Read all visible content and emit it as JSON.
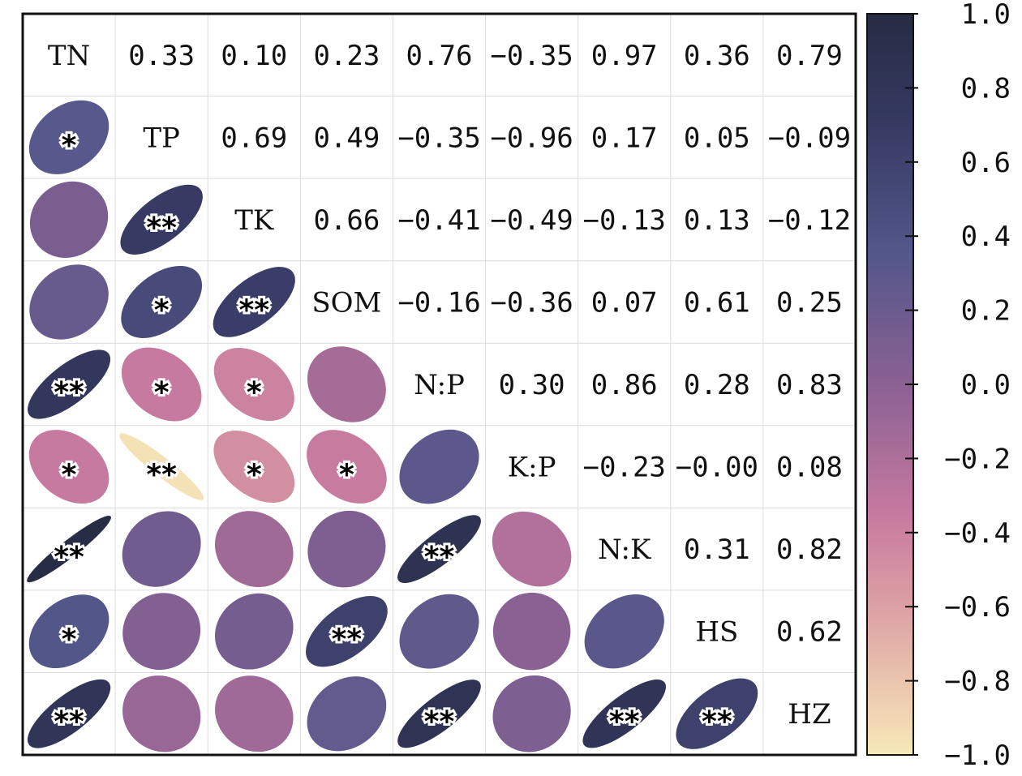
{
  "chart_data": {
    "type": "heatmap",
    "title": "",
    "variables": [
      "TN",
      "TP",
      "TK",
      "SOM",
      "N:P",
      "K:P",
      "N:K",
      "HS",
      "HZ"
    ],
    "upper_labels": [
      [
        "",
        "0.33",
        "0.10",
        "0.23",
        "0.76",
        "−0.35",
        "0.97",
        "0.36",
        "0.79"
      ],
      [
        "",
        "",
        "0.69",
        "0.49",
        "−0.35",
        "−0.96",
        "0.17",
        "0.05",
        "−0.09"
      ],
      [
        "",
        "",
        "",
        "0.66",
        "−0.41",
        "−0.49",
        "−0.13",
        "0.13",
        "−0.12"
      ],
      [
        "",
        "",
        "",
        "",
        "−0.16",
        "−0.36",
        "0.07",
        "0.61",
        "0.25"
      ],
      [
        "",
        "",
        "",
        "",
        "",
        "0.30",
        "0.86",
        "0.28",
        "0.83"
      ],
      [
        "",
        "",
        "",
        "",
        "",
        "",
        "−0.23",
        "−0.00",
        "0.08"
      ],
      [
        "",
        "",
        "",
        "",
        "",
        "",
        "",
        "0.31",
        "0.82"
      ],
      [
        "",
        "",
        "",
        "",
        "",
        "",
        "",
        "",
        "0.62"
      ],
      [
        "",
        "",
        "",
        "",
        "",
        "",
        "",
        "",
        ""
      ]
    ],
    "matrix": [
      [
        1,
        0.33,
        0.1,
        0.23,
        0.76,
        -0.35,
        0.97,
        0.36,
        0.79
      ],
      [
        0.33,
        1,
        0.69,
        0.49,
        -0.35,
        -0.96,
        0.17,
        0.05,
        -0.09
      ],
      [
        0.1,
        0.69,
        1,
        0.66,
        -0.41,
        -0.49,
        -0.13,
        0.13,
        -0.12
      ],
      [
        0.23,
        0.49,
        0.66,
        1,
        -0.16,
        -0.36,
        0.07,
        0.61,
        0.25
      ],
      [
        0.76,
        -0.35,
        -0.41,
        -0.16,
        1,
        0.3,
        0.86,
        0.28,
        0.83
      ],
      [
        -0.35,
        -0.96,
        -0.49,
        -0.36,
        0.3,
        1,
        -0.23,
        -0.0,
        0.08
      ],
      [
        0.97,
        0.17,
        -0.13,
        0.07,
        0.86,
        -0.23,
        1,
        0.31,
        0.82
      ],
      [
        0.36,
        0.05,
        0.13,
        0.61,
        0.28,
        -0.0,
        0.31,
        1,
        0.62
      ],
      [
        0.79,
        -0.09,
        -0.12,
        0.25,
        0.83,
        0.08,
        0.82,
        0.62,
        1
      ]
    ],
    "significance": [
      [
        "",
        "",
        "",
        "",
        "",
        "",
        "",
        "",
        ""
      ],
      [
        "*",
        "",
        "",
        "",
        "",
        "",
        "",
        "",
        ""
      ],
      [
        "",
        "**",
        "",
        "",
        "",
        "",
        "",
        "",
        ""
      ],
      [
        "",
        "*",
        "**",
        "",
        "",
        "",
        "",
        "",
        ""
      ],
      [
        "**",
        "*",
        "*",
        "",
        "",
        "",
        "",
        "",
        ""
      ],
      [
        "*",
        "**",
        "*",
        "*",
        "",
        "",
        "",
        "",
        ""
      ],
      [
        "**",
        "",
        "",
        "",
        "**",
        "",
        "",
        "",
        ""
      ],
      [
        "*",
        "",
        "",
        "**",
        "",
        "",
        "",
        "",
        ""
      ],
      [
        "**",
        "",
        "",
        "",
        "**",
        "",
        "**",
        "**",
        ""
      ]
    ],
    "colorbar": {
      "range": [
        -1.0,
        1.0
      ],
      "tick_labels": [
        "1.0",
        "0.8",
        "0.6",
        "0.4",
        "0.2",
        "0.0",
        "−0.2",
        "−0.4",
        "−0.6",
        "−0.8",
        "−1.0"
      ],
      "colormap": [
        {
          "v": -1.0,
          "c": "#f7e9b8"
        },
        {
          "v": -0.6,
          "c": "#dca0a4"
        },
        {
          "v": -0.35,
          "c": "#c67a9f"
        },
        {
          "v": 0.0,
          "c": "#8a6193"
        },
        {
          "v": 0.35,
          "c": "#54578a"
        },
        {
          "v": 0.7,
          "c": "#363a62"
        },
        {
          "v": 1.0,
          "c": "#262c43"
        }
      ]
    }
  }
}
